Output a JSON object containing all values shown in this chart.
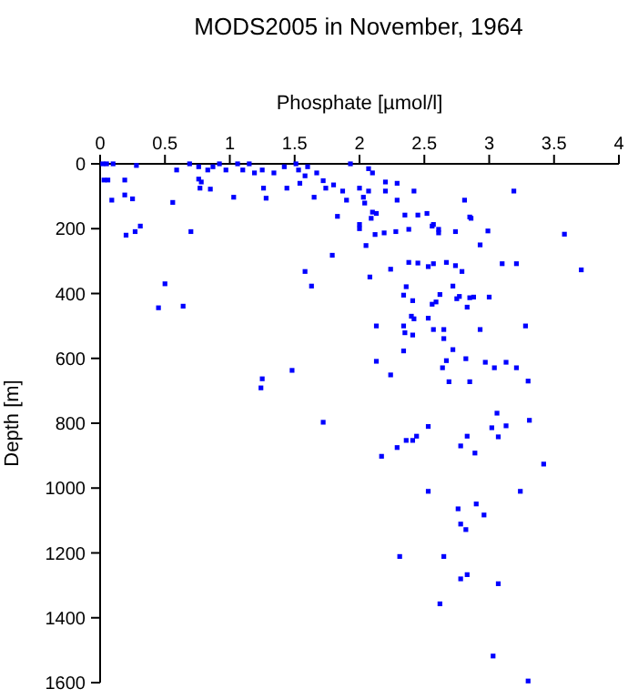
{
  "chart_data": {
    "type": "scatter",
    "title": "MODS2005 in November, 1964",
    "xlabel": "Phosphate [µmol/l]",
    "ylabel": "Depth [m]",
    "xlim": [
      0,
      4
    ],
    "xticks": [
      0,
      0.5,
      1,
      1.5,
      2,
      2.5,
      3,
      3.5,
      4
    ],
    "ylim": [
      1600,
      0
    ],
    "yticks": [
      0,
      200,
      400,
      600,
      800,
      1000,
      1200,
      1400,
      1600
    ],
    "grid": false,
    "marker": "square",
    "series": [
      {
        "color": "#0000ff",
        "x": [
          0.2,
          0.27,
          0.31,
          0.7,
          2.0,
          2.0,
          2.09,
          2.12,
          2.19,
          2.28,
          2.38,
          2.56,
          2.61,
          2.61,
          2.74,
          2.86,
          2.99,
          3.58,
          2.05,
          2.93,
          1.79,
          1.58,
          1.63,
          0.5,
          0.45,
          0.64,
          2.08,
          2.24,
          2.38,
          2.45,
          2.53,
          2.57,
          2.67,
          2.74,
          2.79,
          3.1,
          3.21,
          3.71,
          2.36,
          2.34,
          2.41,
          2.56,
          2.59,
          2.62,
          2.72,
          2.75,
          2.77,
          2.83,
          2.85,
          2.88,
          3.0,
          2.13,
          2.34,
          2.35,
          2.41,
          2.4,
          2.42,
          2.53,
          2.57,
          2.65,
          2.65,
          2.72,
          2.93,
          3.28,
          2.34,
          2.13,
          2.24,
          2.67,
          2.64,
          2.82,
          2.69,
          2.85,
          2.97,
          3.04,
          3.13,
          3.21,
          3.3,
          1.25,
          1.24,
          1.48,
          1.72,
          2.53,
          2.36,
          2.41,
          2.44,
          2.29,
          2.17,
          2.78,
          2.83,
          2.89,
          3.02,
          3.06,
          3.07,
          3.13,
          3.31,
          3.42,
          2.53,
          2.9,
          3.24,
          2.76,
          2.96,
          2.78,
          2.82,
          2.31,
          2.65,
          2.78,
          2.83,
          3.07,
          2.62,
          3.03,
          3.3,
          0.02,
          0.05,
          0.1,
          0.28,
          0.03,
          0.06,
          0.09,
          0.19,
          0.19,
          0.25,
          0.56,
          0.59,
          0.69,
          0.76,
          0.76,
          0.78,
          0.77,
          0.85,
          0.83,
          0.87,
          0.92,
          0.97,
          1.03,
          1.06,
          1.1,
          1.15,
          1.19,
          1.25,
          1.26,
          1.28,
          1.34,
          1.42,
          1.44,
          1.51,
          1.53,
          1.54,
          1.58,
          1.6,
          1.65,
          1.67,
          1.72,
          1.74,
          1.8,
          1.83,
          1.87,
          1.93,
          1.9,
          2.0,
          2.03,
          2.07,
          2.07,
          2.1,
          2.04,
          2.2,
          2.2,
          2.29,
          2.29,
          2.42,
          2.1,
          2.13,
          2.35,
          2.45,
          2.52,
          2.57,
          2.81,
          2.85,
          3.19
        ],
        "values": [
          220,
          209,
          192,
          209,
          187,
          200,
          168,
          218,
          213,
          209,
          202,
          192,
          202,
          213,
          209,
          168,
          207,
          217,
          252,
          250,
          282,
          332,
          377,
          370,
          444,
          439,
          349,
          325,
          304,
          306,
          317,
          308,
          304,
          314,
          332,
          308,
          308,
          327,
          379,
          405,
          422,
          433,
          426,
          403,
          377,
          416,
          409,
          442,
          413,
          411,
          411,
          500,
          500,
          521,
          528,
          470,
          478,
          476,
          511,
          511,
          539,
          573,
          511,
          500,
          577,
          609,
          651,
          607,
          629,
          601,
          672,
          672,
          612,
          629,
          612,
          629,
          670,
          663,
          691,
          637,
          797,
          810,
          853,
          853,
          840,
          875,
          902,
          870,
          840,
          892,
          814,
          769,
          842,
          808,
          791,
          926,
          1010,
          1049,
          1010,
          1064,
          1083,
          1111,
          1128,
          1211,
          1211,
          1280,
          1267,
          1295,
          1357,
          1518,
          1595,
          0,
          0,
          0,
          5,
          50,
          50,
          112,
          50,
          96,
          108,
          119,
          19,
          0,
          9,
          47,
          56,
          75,
          78,
          19,
          9,
          0,
          19,
          103,
          0,
          19,
          0,
          28,
          19,
          75,
          106,
          28,
          9,
          75,
          0,
          19,
          60,
          37,
          9,
          103,
          28,
          52,
          75,
          65,
          162,
          84,
          0,
          112,
          75,
          103,
          84,
          15,
          28,
          121,
          56,
          84,
          60,
          112,
          84,
          149,
          153,
          158,
          158,
          153,
          187,
          112,
          164,
          84
        ]
      }
    ]
  }
}
